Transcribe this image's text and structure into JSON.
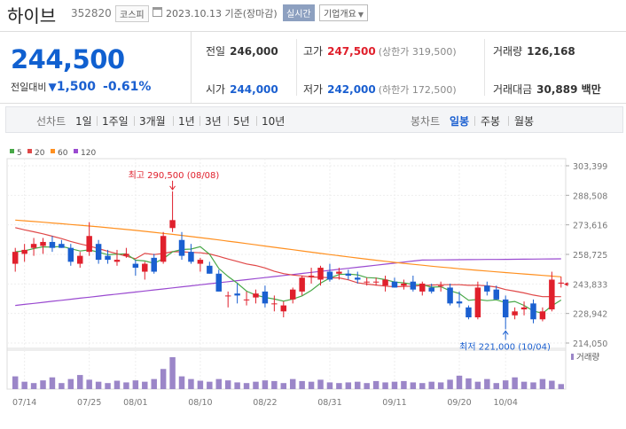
{
  "header": {
    "name": "하이브",
    "code": "352820",
    "market": "코스피",
    "date": "2023.10.13 기준(장마감)",
    "realtime_label": "실시간",
    "company_label": "기업개요"
  },
  "summary": {
    "price": "244,500",
    "diff_label": "전일대비",
    "diff_value": "1,500",
    "diff_pct": "-0.61%",
    "prev_label": "전일",
    "prev_value": "246,000",
    "high_label": "고가",
    "high_value": "247,500",
    "high_sub": "(상한가 319,500)",
    "volume_label": "거래량",
    "volume_value": "126,168",
    "open_label": "시가",
    "open_value": "244,000",
    "low_label": "저가",
    "low_value": "242,000",
    "low_sub": "(하한가 172,500)",
    "amount_label": "거래대금",
    "amount_value": "30,889 백만"
  },
  "period_bar": {
    "line_label": "선차트",
    "line_tabs": [
      "1일",
      "1주일",
      "3개월",
      "1년",
      "3년",
      "5년",
      "10년"
    ],
    "candle_label": "봉차트",
    "candle_tabs": [
      "일봉",
      "주봉",
      "월봉"
    ],
    "candle_active": "일봉"
  },
  "colors": {
    "up": "#e0202c",
    "down": "#1a5fd0",
    "ma5": "#48a848",
    "ma20": "#e04848",
    "ma60": "#ff9020",
    "ma120": "#9a4ad0",
    "volume": "#9b86c8"
  },
  "chart_data": {
    "type": "candlestick",
    "legend": [
      "5",
      "20",
      "60",
      "120"
    ],
    "y_ticks": [
      "303,399",
      "288,508",
      "273,616",
      "258,725",
      "243,833",
      "228,942",
      "214,050"
    ],
    "ylim": [
      214050,
      303399
    ],
    "x_ticks": [
      {
        "label": "07/14",
        "index": 1
      },
      {
        "label": "07/25",
        "index": 8
      },
      {
        "label": "08/01",
        "index": 13
      },
      {
        "label": "08/10",
        "index": 20
      },
      {
        "label": "08/22",
        "index": 27
      },
      {
        "label": "08/31",
        "index": 34
      },
      {
        "label": "09/11",
        "index": 41
      },
      {
        "label": "09/20",
        "index": 48
      },
      {
        "label": "10/04",
        "index": 53
      }
    ],
    "volume_label": "거래량",
    "max_annotation": {
      "text": "최고 290,500 (08/08)",
      "index": 17,
      "value": 290500
    },
    "min_annotation": {
      "text": "최저 221,000 (10/04)",
      "index": 53,
      "value": 221000
    },
    "candles": [
      {
        "o": 254000,
        "h": 262000,
        "l": 250000,
        "c": 260000
      },
      {
        "o": 259000,
        "h": 264000,
        "l": 255000,
        "c": 261000
      },
      {
        "o": 262000,
        "h": 267000,
        "l": 258000,
        "c": 264000
      },
      {
        "o": 263000,
        "h": 267000,
        "l": 259000,
        "c": 265000
      },
      {
        "o": 265000,
        "h": 268000,
        "l": 260000,
        "c": 262000
      },
      {
        "o": 264000,
        "h": 266000,
        "l": 262000,
        "c": 262000
      },
      {
        "o": 262000,
        "h": 264000,
        "l": 253000,
        "c": 255000
      },
      {
        "o": 254000,
        "h": 260000,
        "l": 252000,
        "c": 258000
      },
      {
        "o": 260000,
        "h": 275000,
        "l": 258000,
        "c": 268000
      },
      {
        "o": 264000,
        "h": 266000,
        "l": 254000,
        "c": 256000
      },
      {
        "o": 258000,
        "h": 261000,
        "l": 254000,
        "c": 256000
      },
      {
        "o": 255000,
        "h": 261000,
        "l": 253000,
        "c": 256000
      },
      {
        "o": 258000,
        "h": 262000,
        "l": 257000,
        "c": 259000
      },
      {
        "o": 254000,
        "h": 256000,
        "l": 248000,
        "c": 252000
      },
      {
        "o": 250000,
        "h": 255000,
        "l": 246000,
        "c": 254000
      },
      {
        "o": 257000,
        "h": 259000,
        "l": 249000,
        "c": 250000
      },
      {
        "o": 255000,
        "h": 270000,
        "l": 254000,
        "c": 268000
      },
      {
        "o": 272000,
        "h": 290500,
        "l": 270000,
        "c": 276000
      },
      {
        "o": 266000,
        "h": 270000,
        "l": 256000,
        "c": 258000
      },
      {
        "o": 260000,
        "h": 264000,
        "l": 254000,
        "c": 255000
      },
      {
        "o": 254000,
        "h": 257000,
        "l": 250000,
        "c": 256000
      },
      {
        "o": 253000,
        "h": 255000,
        "l": 249000,
        "c": 249000
      },
      {
        "o": 249000,
        "h": 251000,
        "l": 240000,
        "c": 240000
      },
      {
        "o": 238000,
        "h": 240000,
        "l": 232000,
        "c": 238000
      },
      {
        "o": 239000,
        "h": 244000,
        "l": 234000,
        "c": 238000
      },
      {
        "o": 236000,
        "h": 240000,
        "l": 233000,
        "c": 236000
      },
      {
        "o": 237000,
        "h": 241000,
        "l": 234000,
        "c": 239000
      },
      {
        "o": 240000,
        "h": 243000,
        "l": 232000,
        "c": 234000
      },
      {
        "o": 234000,
        "h": 238000,
        "l": 230000,
        "c": 234000
      },
      {
        "o": 230000,
        "h": 235000,
        "l": 227000,
        "c": 233000
      },
      {
        "o": 236000,
        "h": 242000,
        "l": 234000,
        "c": 241000
      },
      {
        "o": 240000,
        "h": 248000,
        "l": 238000,
        "c": 247000
      },
      {
        "o": 248000,
        "h": 252000,
        "l": 244000,
        "c": 248000
      },
      {
        "o": 246000,
        "h": 253000,
        "l": 243000,
        "c": 252000
      },
      {
        "o": 250000,
        "h": 254000,
        "l": 245000,
        "c": 246000
      },
      {
        "o": 249000,
        "h": 252000,
        "l": 246000,
        "c": 250000
      },
      {
        "o": 249000,
        "h": 251000,
        "l": 246000,
        "c": 248000
      },
      {
        "o": 247000,
        "h": 250000,
        "l": 244000,
        "c": 246000
      },
      {
        "o": 245000,
        "h": 247000,
        "l": 243000,
        "c": 245000
      },
      {
        "o": 245000,
        "h": 247000,
        "l": 243000,
        "c": 245000
      },
      {
        "o": 243000,
        "h": 248000,
        "l": 240000,
        "c": 246000
      },
      {
        "o": 245000,
        "h": 247000,
        "l": 242000,
        "c": 242000
      },
      {
        "o": 243000,
        "h": 246000,
        "l": 241000,
        "c": 244000
      },
      {
        "o": 245000,
        "h": 248000,
        "l": 240000,
        "c": 241000
      },
      {
        "o": 240000,
        "h": 245000,
        "l": 238000,
        "c": 244000
      },
      {
        "o": 242000,
        "h": 244000,
        "l": 239000,
        "c": 240000
      },
      {
        "o": 243000,
        "h": 245000,
        "l": 240000,
        "c": 243000
      },
      {
        "o": 242000,
        "h": 244000,
        "l": 233000,
        "c": 234000
      },
      {
        "o": 235000,
        "h": 240000,
        "l": 232000,
        "c": 234000
      },
      {
        "o": 232000,
        "h": 233000,
        "l": 226000,
        "c": 227000
      },
      {
        "o": 227000,
        "h": 245000,
        "l": 226000,
        "c": 242000
      },
      {
        "o": 243000,
        "h": 245000,
        "l": 238000,
        "c": 240000
      },
      {
        "o": 241000,
        "h": 243000,
        "l": 236000,
        "c": 236000
      },
      {
        "o": 236000,
        "h": 238000,
        "l": 221000,
        "c": 227000
      },
      {
        "o": 228000,
        "h": 232000,
        "l": 226000,
        "c": 230000
      },
      {
        "o": 231000,
        "h": 235000,
        "l": 228000,
        "c": 232000
      },
      {
        "o": 234000,
        "h": 236000,
        "l": 224000,
        "c": 226000
      },
      {
        "o": 226000,
        "h": 232000,
        "l": 225000,
        "c": 230000
      },
      {
        "o": 231000,
        "h": 250000,
        "l": 230000,
        "c": 246000
      },
      {
        "o": 244000,
        "h": 247500,
        "l": 242000,
        "c": 244500
      }
    ],
    "volumes": [
      38,
      22,
      18,
      26,
      35,
      18,
      30,
      42,
      28,
      22,
      18,
      25,
      20,
      26,
      22,
      30,
      60,
      95,
      38,
      30,
      25,
      22,
      30,
      26,
      20,
      18,
      22,
      26,
      24,
      18,
      30,
      24,
      22,
      28,
      20,
      18,
      20,
      22,
      18,
      24,
      20,
      22,
      24,
      20,
      18,
      22,
      20,
      28,
      40,
      32,
      22,
      30,
      18,
      26,
      35,
      22,
      20,
      30,
      25,
      15
    ]
  }
}
